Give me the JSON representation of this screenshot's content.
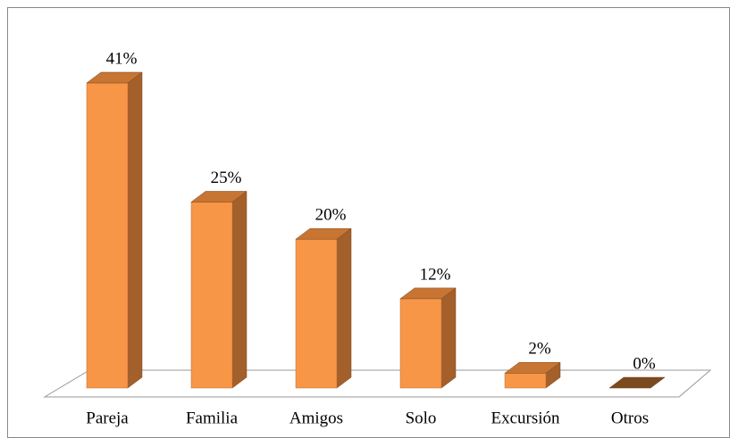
{
  "chart_data": {
    "type": "bar3d",
    "categories": [
      "Pareja",
      "Familia",
      "Amigos",
      "Solo",
      "Excursión",
      "Otros"
    ],
    "values": [
      41,
      25,
      20,
      12,
      2,
      0
    ],
    "value_labels": [
      "41%",
      "25%",
      "20%",
      "12%",
      "2%",
      "0%"
    ],
    "color": "#f79646"
  }
}
